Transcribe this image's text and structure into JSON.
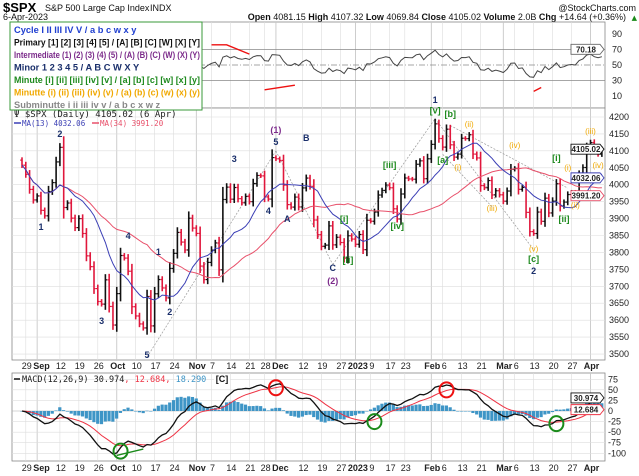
{
  "header": {
    "symbol": "$SPX",
    "name": "S&P 500 Large Cap Index",
    "exchange": "INDX",
    "watermark": "@StockCharts.com",
    "date": "6-Apr-2023",
    "open_label": "Open",
    "open": "4081.15",
    "high_label": "High",
    "high": "4107.32",
    "low_label": "Low",
    "low": "4069.84",
    "close_label": "Close",
    "close": "4105.02",
    "volume_label": "Volume",
    "volume": "2.0B",
    "chg_label": "Chg",
    "chg": "+14.64 (+0.36%)",
    "chg_arrow": "▲"
  },
  "wave_legend": [
    {
      "text": "Cycle I II III IV V / a b c w x y",
      "color": "#1f3fd0"
    },
    {
      "text": "Primary [1] [2] [3] [4] [5] / [A] [B] [C] [W] [X] [Y]",
      "color": "#111111"
    },
    {
      "text": "Intermediate (1) (2) (3) (4) (5) / (A) (B) (C) (W) (X) (Y)",
      "color": "#7b2a8a"
    },
    {
      "text": "Minor 1 2 3 4 5 / A B C W X Y",
      "color": "#1a2f6b"
    },
    {
      "text": "Minute [i] [ii] [iii] [iv] [v] / [a] [b] [c] [w] [x] [y]",
      "color": "#1e8a1e"
    },
    {
      "text": "Minutte (i) (ii) (iii) (iv) (v) / (a) (b) (c) (w) (x) (y)",
      "color": "#f0a800"
    },
    {
      "text": "Subminutte i ii iii iv v / a b c x w z",
      "color": "#888888"
    }
  ],
  "price_panel": {
    "title": "$SPX (Daily) 4105.02 (6 Apr)",
    "ma13_label": "MA(13) 4032.06",
    "ma34_label": "MA(34) 3991.20",
    "last_close_tag": "4105.02",
    "ma13_tag": "4032.06",
    "ma34_tag": "3991.20"
  },
  "rsi_panel": {
    "last_tag": "70.18"
  },
  "macd_panel": {
    "label": "MACD(12,26,9)",
    "macd": "30.974",
    "signal": "12.684",
    "hist": "18.290",
    "macd_tag": "30.974",
    "signal_tag": "12.684",
    "extra_label": "[C]"
  },
  "colors": {
    "up_bar": "#111111",
    "down_bar": "#e0173c",
    "ma13": "#3b3fb5",
    "ma34": "#e8506a",
    "rsi_line": "#444444",
    "rsi_over": "#4f8a57",
    "rsi_under": "#8a4a4a",
    "macd_line": "#111111",
    "signal_line": "#ee3344",
    "hist": "#3e95c6",
    "divergence": "#ee1111",
    "circle_bear": "#ee1111",
    "circle_bull": "#1a8a1a",
    "grid": "#dddddd",
    "trendline": "#999999"
  },
  "chart_data": {
    "type": "ohlc",
    "title": "$SPX (Daily)",
    "ylim": [
      3480,
      4230
    ],
    "y_ticks": [
      3500,
      3550,
      3600,
      3650,
      3700,
      3750,
      3800,
      3850,
      3900,
      3950,
      4000,
      4050,
      4100,
      4150,
      4200
    ],
    "rsi_ticks": [
      10,
      30,
      50,
      70,
      90
    ],
    "rsi_levels": [
      30,
      50,
      70
    ],
    "macd_ticks": [
      75,
      50,
      25,
      0,
      -25,
      -50,
      -75,
      -100
    ],
    "grid": true,
    "indicators": [
      "MA(13)",
      "MA(34)",
      "RSI",
      "MACD(12,26,9)"
    ],
    "x_ticks": [
      {
        "date": "2022-08-29",
        "label": "29",
        "month": false
      },
      {
        "date": "2022-09-01",
        "label": "Sep",
        "month": true
      },
      {
        "date": "2022-09-12",
        "label": "12",
        "month": false
      },
      {
        "date": "2022-09-19",
        "label": "19",
        "month": false
      },
      {
        "date": "2022-09-26",
        "label": "26",
        "month": false
      },
      {
        "date": "2022-10-03",
        "label": "Oct",
        "month": true
      },
      {
        "date": "2022-10-10",
        "label": "10",
        "month": false
      },
      {
        "date": "2022-10-17",
        "label": "17",
        "month": false
      },
      {
        "date": "2022-10-24",
        "label": "24",
        "month": false
      },
      {
        "date": "2022-11-01",
        "label": "Nov",
        "month": true
      },
      {
        "date": "2022-11-07",
        "label": "7",
        "month": false
      },
      {
        "date": "2022-11-14",
        "label": "14",
        "month": false
      },
      {
        "date": "2022-11-21",
        "label": "21",
        "month": false
      },
      {
        "date": "2022-11-28",
        "label": "28",
        "month": false
      },
      {
        "date": "2022-12-01",
        "label": "Dec",
        "month": true
      },
      {
        "date": "2022-12-12",
        "label": "12",
        "month": false
      },
      {
        "date": "2022-12-19",
        "label": "19",
        "month": false
      },
      {
        "date": "2022-12-27",
        "label": "27",
        "month": false
      },
      {
        "date": "2023-01-03",
        "label": "2023",
        "month": true
      },
      {
        "date": "2023-01-09",
        "label": "9",
        "month": false
      },
      {
        "date": "2023-01-17",
        "label": "17",
        "month": false
      },
      {
        "date": "2023-01-23",
        "label": "23",
        "month": false
      },
      {
        "date": "2023-02-01",
        "label": "Feb",
        "month": true
      },
      {
        "date": "2023-02-06",
        "label": "6",
        "month": false
      },
      {
        "date": "2023-02-13",
        "label": "13",
        "month": false
      },
      {
        "date": "2023-02-21",
        "label": "21",
        "month": false
      },
      {
        "date": "2023-03-01",
        "label": "Mar",
        "month": true
      },
      {
        "date": "2023-03-06",
        "label": "6",
        "month": false
      },
      {
        "date": "2023-03-13",
        "label": "13",
        "month": false
      },
      {
        "date": "2023-03-20",
        "label": "20",
        "month": false
      },
      {
        "date": "2023-03-27",
        "label": "27",
        "month": false
      },
      {
        "date": "2023-04-03",
        "label": "Apr",
        "month": true
      }
    ],
    "dates": [
      "2022-08-26",
      "2022-08-29",
      "2022-08-30",
      "2022-08-31",
      "2022-09-01",
      "2022-09-02",
      "2022-09-06",
      "2022-09-07",
      "2022-09-08",
      "2022-09-09",
      "2022-09-12",
      "2022-09-13",
      "2022-09-14",
      "2022-09-15",
      "2022-09-16",
      "2022-09-19",
      "2022-09-20",
      "2022-09-21",
      "2022-09-22",
      "2022-09-23",
      "2022-09-26",
      "2022-09-27",
      "2022-09-28",
      "2022-09-29",
      "2022-09-30",
      "2022-10-03",
      "2022-10-04",
      "2022-10-05",
      "2022-10-06",
      "2022-10-07",
      "2022-10-10",
      "2022-10-11",
      "2022-10-12",
      "2022-10-13",
      "2022-10-14",
      "2022-10-17",
      "2022-10-18",
      "2022-10-19",
      "2022-10-20",
      "2022-10-21",
      "2022-10-24",
      "2022-10-25",
      "2022-10-26",
      "2022-10-27",
      "2022-10-28",
      "2022-10-31",
      "2022-11-01",
      "2022-11-02",
      "2022-11-03",
      "2022-11-04",
      "2022-11-07",
      "2022-11-08",
      "2022-11-09",
      "2022-11-10",
      "2022-11-11",
      "2022-11-14",
      "2022-11-15",
      "2022-11-16",
      "2022-11-17",
      "2022-11-18",
      "2022-11-21",
      "2022-11-22",
      "2022-11-23",
      "2022-11-25",
      "2022-11-28",
      "2022-11-29",
      "2022-11-30",
      "2022-12-01",
      "2022-12-02",
      "2022-12-05",
      "2022-12-06",
      "2022-12-07",
      "2022-12-08",
      "2022-12-09",
      "2022-12-12",
      "2022-12-13",
      "2022-12-14",
      "2022-12-15",
      "2022-12-16",
      "2022-12-19",
      "2022-12-20",
      "2022-12-21",
      "2022-12-22",
      "2022-12-23",
      "2022-12-27",
      "2022-12-28",
      "2022-12-29",
      "2022-12-30",
      "2023-01-03",
      "2023-01-04",
      "2023-01-05",
      "2023-01-06",
      "2023-01-09",
      "2023-01-10",
      "2023-01-11",
      "2023-01-12",
      "2023-01-13",
      "2023-01-17",
      "2023-01-18",
      "2023-01-19",
      "2023-01-20",
      "2023-01-23",
      "2023-01-24",
      "2023-01-25",
      "2023-01-26",
      "2023-01-27",
      "2023-01-30",
      "2023-01-31",
      "2023-02-01",
      "2023-02-02",
      "2023-02-03",
      "2023-02-06",
      "2023-02-07",
      "2023-02-08",
      "2023-02-09",
      "2023-02-10",
      "2023-02-13",
      "2023-02-14",
      "2023-02-15",
      "2023-02-16",
      "2023-02-17",
      "2023-02-21",
      "2023-02-22",
      "2023-02-23",
      "2023-02-24",
      "2023-02-27",
      "2023-02-28",
      "2023-03-01",
      "2023-03-02",
      "2023-03-03",
      "2023-03-06",
      "2023-03-07",
      "2023-03-08",
      "2023-03-09",
      "2023-03-10",
      "2023-03-13",
      "2023-03-14",
      "2023-03-15",
      "2023-03-16",
      "2023-03-17",
      "2023-03-20",
      "2023-03-21",
      "2023-03-22",
      "2023-03-23",
      "2023-03-24",
      "2023-03-27",
      "2023-03-28",
      "2023-03-29",
      "2023-03-30",
      "2023-03-31",
      "2023-04-03",
      "2023-04-04",
      "2023-04-05",
      "2023-04-06"
    ],
    "close": [
      4057.66,
      4030.61,
      3986.16,
      3955.0,
      3966.85,
      3924.26,
      3908.19,
      3979.87,
      4006.18,
      4067.36,
      4110.41,
      3932.69,
      3946.01,
      3901.35,
      3873.33,
      3899.89,
      3855.93,
      3789.93,
      3757.99,
      3693.23,
      3655.04,
      3647.29,
      3719.04,
      3640.47,
      3585.62,
      3678.43,
      3790.93,
      3783.28,
      3744.52,
      3639.66,
      3612.39,
      3588.84,
      3577.03,
      3669.91,
      3583.07,
      3677.95,
      3719.98,
      3695.16,
      3665.78,
      3752.75,
      3797.34,
      3859.11,
      3830.6,
      3807.3,
      3901.06,
      3871.98,
      3856.1,
      3759.69,
      3719.89,
      3770.55,
      3806.8,
      3828.11,
      3748.57,
      3956.37,
      3992.93,
      3957.25,
      3991.73,
      3958.79,
      3946.56,
      3965.34,
      3949.94,
      4003.58,
      4027.26,
      4026.12,
      3963.94,
      3957.63,
      4080.11,
      4076.57,
      4071.7,
      3998.84,
      3941.26,
      3933.92,
      3963.51,
      3934.38,
      3990.56,
      4019.65,
      3995.32,
      3895.75,
      3852.36,
      3817.66,
      3821.62,
      3878.44,
      3822.39,
      3844.82,
      3829.25,
      3783.22,
      3849.28,
      3839.5,
      3824.14,
      3852.97,
      3808.1,
      3895.08,
      3892.09,
      3919.25,
      3969.61,
      3983.17,
      3999.09,
      3990.97,
      3928.86,
      3898.85,
      3972.61,
      4019.81,
      4016.95,
      4016.22,
      4060.43,
      4070.56,
      4017.77,
      4076.6,
      4119.21,
      4179.76,
      4136.48,
      4111.08,
      4164.0,
      4117.86,
      4081.5,
      4090.46,
      4137.29,
      4136.13,
      4147.6,
      4090.41,
      4079.09,
      3997.34,
      3991.05,
      4012.32,
      3970.04,
      3982.24,
      3970.15,
      3951.39,
      3981.35,
      4045.64,
      4048.42,
      3986.37,
      3992.01,
      3918.32,
      3861.59,
      3855.76,
      3919.29,
      3891.93,
      3960.28,
      3916.64,
      3951.57,
      4002.87,
      3936.97,
      3948.72,
      3970.99,
      3977.53,
      3971.27,
      4027.81,
      4050.83,
      4109.31,
      4124.51,
      4100.6,
      4090.38,
      4105.02
    ],
    "wave_labels": [
      {
        "text": "1",
        "degree": "minor",
        "date": "2022-09-02",
        "price": 3875
      },
      {
        "text": "2",
        "degree": "minor",
        "date": "2022-09-12",
        "price": 4150
      },
      {
        "text": "3",
        "degree": "minor",
        "date": "2022-09-27",
        "price": 3598
      },
      {
        "text": "4",
        "degree": "minor",
        "date": "2022-10-06",
        "price": 3849
      },
      {
        "text": "5",
        "degree": "minor",
        "date": "2022-10-13",
        "price": 3462
      },
      {
        "text": "1",
        "degree": "minor",
        "date": "2022-10-18",
        "price": 3801
      },
      {
        "text": "2",
        "degree": "minor",
        "date": "2022-10-21",
        "price": 3624
      },
      {
        "text": "3",
        "degree": "minor",
        "date": "2022-11-15",
        "price": 4076
      },
      {
        "text": "4",
        "degree": "minor",
        "date": "2022-11-29",
        "price": 3922
      },
      {
        "text": "5",
        "degree": "minor",
        "date": "2022-12-01",
        "price": 4126
      },
      {
        "text": "(1)",
        "degree": "intermediate",
        "date": "2022-12-01",
        "price": 4162
      },
      {
        "text": "A",
        "degree": "minor",
        "date": "2022-12-06",
        "price": 3899
      },
      {
        "text": "B",
        "degree": "minor",
        "date": "2022-12-13",
        "price": 4138
      },
      {
        "text": "C",
        "degree": "minor",
        "date": "2022-12-22",
        "price": 3754
      },
      {
        "text": "(2)",
        "degree": "intermediate",
        "date": "2022-12-22",
        "price": 3716
      },
      {
        "text": "1",
        "degree": "minor",
        "date": "2023-02-02",
        "price": 4250
      },
      {
        "text": "2",
        "degree": "minor",
        "date": "2023-03-13",
        "price": 3745
      },
      {
        "text": "[i]",
        "degree": "minute",
        "date": "2022-12-28",
        "price": 3899
      },
      {
        "text": "[ii]",
        "degree": "minute",
        "date": "2022-12-29",
        "price": 3778
      },
      {
        "text": "[iii]",
        "degree": "minute",
        "date": "2023-01-17",
        "price": 4058
      },
      {
        "text": "[iv]",
        "degree": "minute",
        "date": "2023-01-19",
        "price": 3878
      },
      {
        "text": "[v]",
        "degree": "minute",
        "date": "2023-02-02",
        "price": 4221
      },
      {
        "text": "[a]",
        "degree": "minute",
        "date": "2023-02-06",
        "price": 4073
      },
      {
        "text": "[b]",
        "degree": "minute",
        "date": "2023-02-08",
        "price": 4209
      },
      {
        "text": "[c]",
        "degree": "minute",
        "date": "2023-03-13",
        "price": 3781
      },
      {
        "text": "[i]",
        "degree": "minute",
        "date": "2023-03-21",
        "price": 4079
      },
      {
        "text": "[ii]",
        "degree": "minute",
        "date": "2023-03-23",
        "price": 3899
      },
      {
        "text": "(i)",
        "degree": "minutte",
        "date": "2023-02-10",
        "price": 4052
      },
      {
        "text": "(ii)",
        "degree": "minutte",
        "date": "2023-02-15",
        "price": 4179
      },
      {
        "text": "(iii)",
        "degree": "minutte",
        "date": "2023-02-24",
        "price": 3931
      },
      {
        "text": "(iv)",
        "degree": "minutte",
        "date": "2023-03-06",
        "price": 4117
      },
      {
        "text": "(v)",
        "degree": "minutte",
        "date": "2023-03-13",
        "price": 3804
      },
      {
        "text": "(i)",
        "degree": "minutte",
        "date": "2023-03-24",
        "price": 4035
      },
      {
        "text": "(ii)",
        "degree": "minutte",
        "date": "2023-03-28",
        "price": 3946
      },
      {
        "text": "(iii)",
        "degree": "minutte",
        "date": "2023-04-03",
        "price": 4159
      },
      {
        "text": "(iv)",
        "degree": "minutte",
        "date": "2023-04-05",
        "price": 4058
      }
    ],
    "trendlines": [
      {
        "from": {
          "date": "2022-10-13",
          "price": 3491
        },
        "to": {
          "date": "2022-12-01",
          "price": 4100
        }
      },
      {
        "from": {
          "date": "2022-12-01",
          "price": 4100
        },
        "to": {
          "date": "2022-12-22",
          "price": 3764
        }
      },
      {
        "from": {
          "date": "2022-12-22",
          "price": 3764
        },
        "to": {
          "date": "2023-02-02",
          "price": 4195
        }
      },
      {
        "from": {
          "date": "2023-02-02",
          "price": 4195
        },
        "to": {
          "date": "2023-03-13",
          "price": 3808
        }
      },
      {
        "from": {
          "date": "2023-02-08",
          "price": 4175
        },
        "to": {
          "date": "2023-03-24",
          "price": 3990
        }
      },
      {
        "from": {
          "date": "2023-02-06",
          "price": 4090
        },
        "to": {
          "date": "2023-02-24",
          "price": 3935
        }
      }
    ],
    "rsi_divergences": [
      [
        {
          "date": "2022-11-07",
          "value": 76
        },
        {
          "date": "2022-11-11",
          "value": 76
        },
        {
          "date": "2022-11-21",
          "value": 64
        }
      ],
      [
        {
          "date": "2022-11-28",
          "value": 18
        },
        {
          "date": "2022-12-08",
          "value": 24
        }
      ],
      [
        {
          "date": "2023-03-13",
          "value": 16
        },
        {
          "date": "2023-03-15",
          "value": 21
        }
      ]
    ],
    "macd_circles": [
      {
        "date": "2022-10-04",
        "value": -95,
        "signal": "bull"
      },
      {
        "date": "2022-12-01",
        "value": 55,
        "signal": "bear"
      },
      {
        "date": "2023-01-10",
        "value": -25,
        "signal": "bull"
      },
      {
        "date": "2023-02-07",
        "value": 50,
        "signal": "bear"
      },
      {
        "date": "2023-03-21",
        "value": -30,
        "signal": "bull"
      }
    ],
    "macd_trendline": [
      {
        "date": "2022-10-03",
        "value": -105
      },
      {
        "date": "2022-10-12",
        "value": -90
      }
    ]
  }
}
